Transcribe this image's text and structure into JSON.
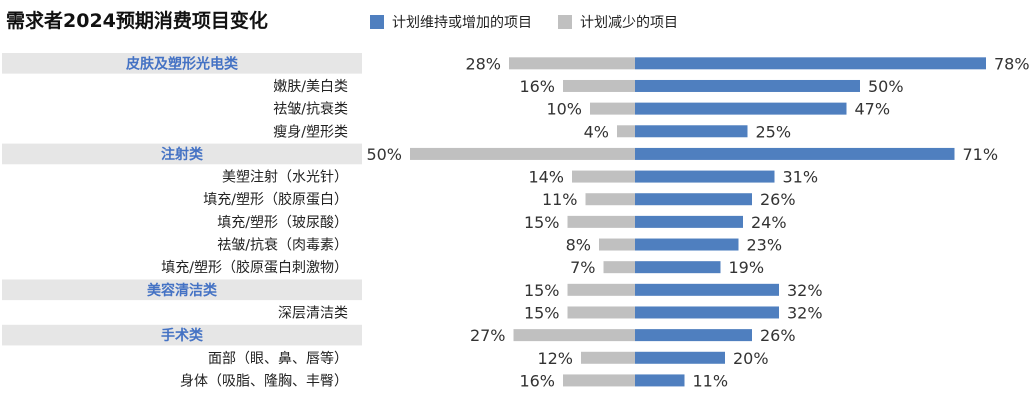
{
  "title": "需求者2024预期消费项目变化",
  "legend": [
    {
      "label": "计划维持或增加的项目",
      "color": "#4f7fbf"
    },
    {
      "label": "计划减少的项目",
      "color": "#c0c0c0"
    }
  ],
  "colors": {
    "increase": "#4f7fbf",
    "decrease": "#c0c0c0",
    "category_band": "#e6e6e6",
    "category_text": "#4472c4"
  },
  "chart_data": {
    "type": "bar",
    "orientation": "horizontal-diverging",
    "xlim": [
      -50,
      78
    ],
    "grid": false,
    "legend_position": "top",
    "series": [
      {
        "name": "计划维持或增加的项目",
        "values": [
          78,
          50,
          47,
          25,
          71,
          31,
          26,
          24,
          23,
          19,
          32,
          32,
          26,
          20,
          11
        ]
      },
      {
        "name": "计划减少的项目",
        "values": [
          28,
          16,
          10,
          4,
          50,
          14,
          11,
          15,
          8,
          7,
          15,
          15,
          27,
          12,
          16
        ]
      }
    ],
    "categories": [
      "皮肤及塑形光电类",
      "嫩肤/美白类",
      "祛皱/抗衰类",
      "瘦身/塑形类",
      "注射类",
      "美塑注射（水光针）",
      "填充/塑形（胶原蛋白）",
      "填充/塑形（玻尿酸）",
      "祛皱/抗衰（肉毒素）",
      "填充/塑形（胶原蛋白刺激物）",
      "美容清洁类",
      "深层清洁类",
      "手术类",
      "面部（眼、鼻、唇等）",
      "身体（吸脂、隆胸、丰臀）"
    ],
    "is_group_header": [
      true,
      false,
      false,
      false,
      true,
      false,
      false,
      false,
      false,
      false,
      true,
      false,
      true,
      false,
      false
    ],
    "value_labels_increase": [
      "78%",
      "50%",
      "47%",
      "25%",
      "71%",
      "31%",
      "26%",
      "24%",
      "23%",
      "19%",
      "32%",
      "32%",
      "26%",
      "20%",
      "11%"
    ],
    "value_labels_decrease": [
      "28%",
      "16%",
      "10%",
      "4%",
      "50%",
      "14%",
      "11%",
      "15%",
      "8%",
      "7%",
      "15%",
      "15%",
      "27%",
      "12%",
      "16%"
    ]
  }
}
